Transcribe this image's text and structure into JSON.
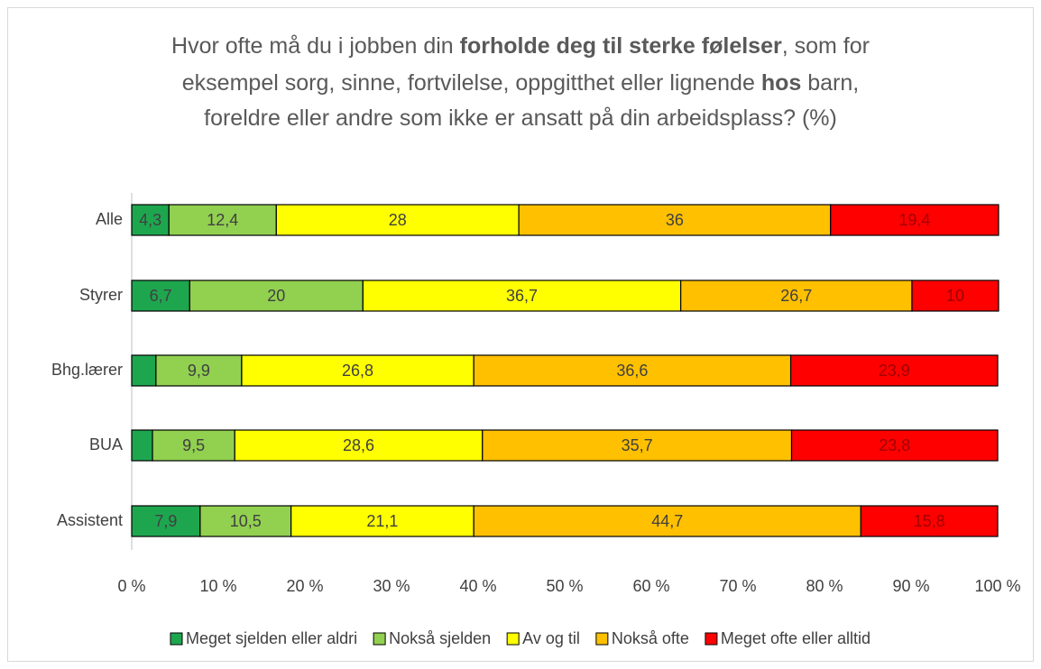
{
  "chart_data": {
    "type": "stacked-barh",
    "title_lines": [
      [
        {
          "text": "Hvor ofte må du i jobben din "
        },
        {
          "text": "forholde deg til sterke følelser",
          "bold": true
        },
        {
          "text": ", som for"
        }
      ],
      [
        {
          "text": "eksempel sorg, sinne, fortvilelse, oppgitthet eller lignende "
        },
        {
          "text": "hos",
          "bold": true
        },
        {
          "text": " barn,"
        }
      ],
      [
        {
          "text": "foreldre eller andre som ikke er ansatt på din arbeidsplass? (%)"
        }
      ]
    ],
    "categories": [
      "Alle",
      "Styrer",
      "Bhg.lærer",
      "BUA",
      "Assistent"
    ],
    "series": [
      {
        "name": "Meget sjelden eller aldri",
        "color": "#1ea64f",
        "values": [
          4.3,
          6.7,
          2.8,
          2.4,
          7.9
        ],
        "value_labels": [
          "4,3",
          "6,7",
          null,
          null,
          "7,9"
        ]
      },
      {
        "name": "Nokså sjelden",
        "color": "#92d050",
        "values": [
          12.4,
          20,
          9.9,
          9.5,
          10.5
        ],
        "value_labels": [
          "12,4",
          "20",
          "9,9",
          "9,5",
          "10,5"
        ]
      },
      {
        "name": "Av og til",
        "color": "#ffff00",
        "values": [
          28,
          36.7,
          26.8,
          28.6,
          21.1
        ],
        "value_labels": [
          "28",
          "36,7",
          "26,8",
          "28,6",
          "21,1"
        ]
      },
      {
        "name": "Nokså ofte",
        "color": "#ffc000",
        "values": [
          36,
          26.7,
          36.6,
          35.7,
          44.7
        ],
        "value_labels": [
          "36",
          "26,7",
          "36,6",
          "35,7",
          "44,7"
        ]
      },
      {
        "name": "Meget ofte eller alltid",
        "color": "#ff0000",
        "values": [
          19.4,
          10,
          23.9,
          23.8,
          15.8
        ],
        "value_labels": [
          "19,4",
          "10",
          "23,9",
          "23,8",
          "15,8"
        ]
      }
    ],
    "xlim": [
      0,
      100
    ],
    "xticks": [
      {
        "value": 0,
        "label": "0 %"
      },
      {
        "value": 10,
        "label": "10 %"
      },
      {
        "value": 20,
        "label": "20 %"
      },
      {
        "value": 30,
        "label": "30 %"
      },
      {
        "value": 40,
        "label": "40 %"
      },
      {
        "value": 50,
        "label": "50 %"
      },
      {
        "value": 60,
        "label": "60 %"
      },
      {
        "value": 70,
        "label": "70 %"
      },
      {
        "value": 80,
        "label": "80 %"
      },
      {
        "value": 90,
        "label": "90 %"
      },
      {
        "value": 100,
        "label": "100 %"
      }
    ],
    "legend": "bottom"
  }
}
